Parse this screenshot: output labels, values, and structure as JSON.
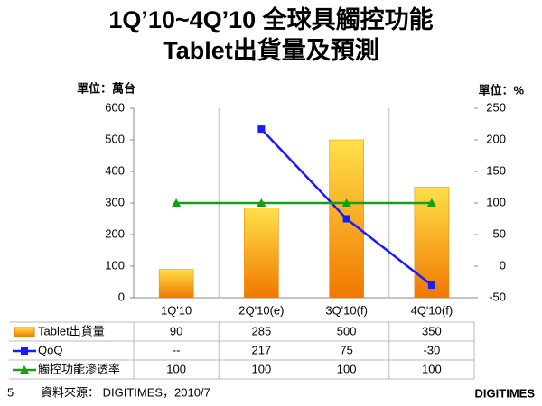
{
  "chart_data": {
    "type": "bar-line",
    "title": "1Q’10~4Q’10 全球具觸控功能",
    "subtitle": "Tablet出貨量及預測",
    "y_unit": "單位：萬台",
    "y2_unit": "單位：%",
    "categories": [
      "1Q'10",
      "2Q'10(e)",
      "3Q'10(f)",
      "4Q'10(f)"
    ],
    "series": [
      {
        "name": "Tablet出貨量",
        "type": "bar",
        "color": "#f07800",
        "values": [
          90,
          285,
          500,
          350
        ]
      },
      {
        "name": "QoQ",
        "type": "line",
        "axis": "y2",
        "color": "#1a1aff",
        "values": [
          null,
          217,
          75,
          -30
        ],
        "value_labels": [
          "--",
          "217",
          "75",
          "-30"
        ]
      },
      {
        "name": "觸控功能滲透率",
        "type": "line",
        "axis": "y2",
        "color": "#14a014",
        "values": [
          100,
          100,
          100,
          100
        ]
      }
    ],
    "ylim": [
      0,
      600
    ],
    "yticks": [
      0,
      100,
      200,
      300,
      400,
      500,
      600
    ],
    "y2lim": [
      -50,
      250
    ],
    "y2ticks": [
      -50,
      0,
      50,
      100,
      150,
      200,
      250
    ]
  },
  "footer": {
    "page": "5",
    "source": "資料來源： DIGITIMES，2010/7",
    "logo": "DIGITIMES"
  }
}
